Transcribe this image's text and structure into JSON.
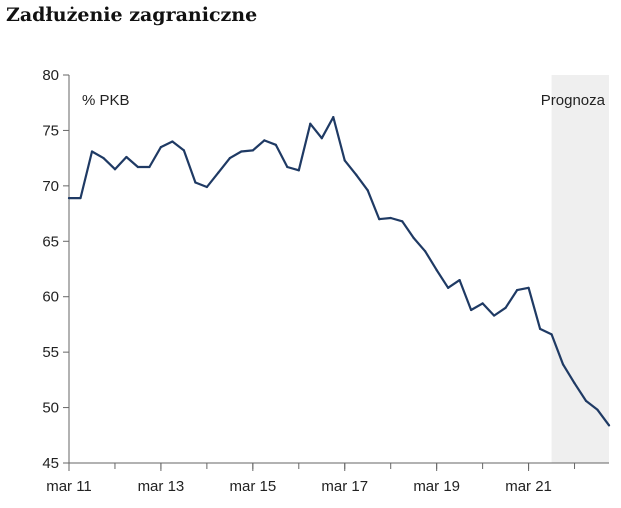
{
  "title": "Zadłużenie zagraniczne",
  "chart_data": {
    "type": "line",
    "ylabel": "% PKB",
    "ylim": [
      45,
      80
    ],
    "y_ticks": [
      "45",
      "50",
      "55",
      "60",
      "65",
      "70",
      "75",
      "80"
    ],
    "x_tick_labels": [
      "mar 11",
      "mar 13",
      "mar 15",
      "mar 17",
      "mar 19",
      "mar 21"
    ],
    "x_range_quarters": [
      0,
      47
    ],
    "forecast": {
      "label": "Prognoza",
      "from_quarter": 42,
      "shade_color": "#efefef"
    },
    "series": [
      {
        "color": "#1f3a64",
        "x": [
          0,
          1,
          2,
          3,
          4,
          5,
          6,
          7,
          8,
          9,
          10,
          11,
          12,
          13,
          14,
          15,
          16,
          17,
          18,
          19,
          20,
          21,
          22,
          23,
          24,
          25,
          26,
          27,
          28,
          29,
          30,
          31,
          32,
          33,
          34,
          35,
          36,
          37,
          38,
          39,
          40,
          41,
          42,
          43,
          44,
          45,
          46,
          47
        ],
        "values": [
          68.9,
          68.9,
          73.1,
          72.5,
          71.5,
          72.6,
          71.7,
          71.7,
          73.5,
          74.0,
          73.2,
          70.3,
          69.9,
          71.2,
          72.5,
          73.1,
          73.2,
          74.1,
          73.7,
          71.7,
          71.4,
          75.6,
          74.3,
          76.2,
          72.3,
          71.0,
          69.6,
          67.0,
          67.1,
          66.8,
          65.3,
          64.1,
          62.4,
          60.8,
          61.5,
          58.8,
          59.4,
          58.3,
          59.0,
          60.6,
          60.8,
          57.1,
          56.6,
          53.9,
          52.2,
          50.6,
          49.8,
          48.4
        ]
      }
    ]
  }
}
